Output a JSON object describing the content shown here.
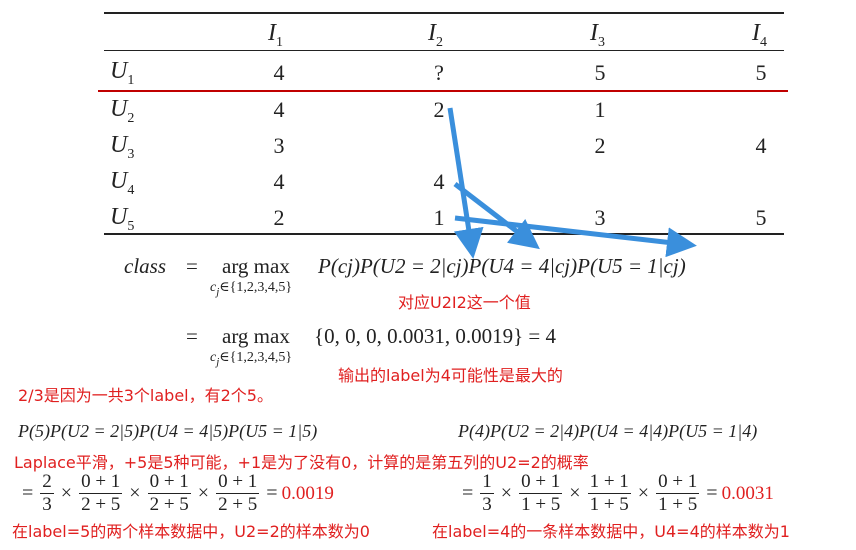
{
  "table": {
    "columns": [
      "I",
      "I",
      "I",
      "I"
    ],
    "column_subs": [
      "1",
      "2",
      "3",
      "4"
    ],
    "rows": [
      {
        "label": "U",
        "sub": "1",
        "cells": [
          "4",
          "?",
          "5",
          "5"
        ]
      },
      {
        "label": "U",
        "sub": "2",
        "cells": [
          "4",
          "2",
          "1",
          ""
        ]
      },
      {
        "label": "U",
        "sub": "3",
        "cells": [
          "3",
          "",
          "2",
          "4"
        ]
      },
      {
        "label": "U",
        "sub": "4",
        "cells": [
          "4",
          "4",
          "",
          ""
        ]
      },
      {
        "label": "U",
        "sub": "5",
        "cells": [
          "2",
          "1",
          "3",
          "5"
        ]
      }
    ]
  },
  "formula1": {
    "lhs": "class",
    "eq": "=",
    "argmax": "arg max",
    "sub": "c",
    "sub_j": "j",
    "sub_set": "∈{1,2,3,4,5}",
    "rhs": "P(cj)P(U2 = 2|cj)P(U4 = 4|cj)P(U5 = 1|cj)"
  },
  "formula2": {
    "eq": "=",
    "argmax": "arg max",
    "set": "{0, 0, 0, 0.0031, 0.0019} = 4"
  },
  "notes": {
    "n1": "对应U2I2这一个值",
    "n2": "输出的label为4可能性是最大的",
    "n3": "2/3是因为一共3个label，有2个5。",
    "n4": "Laplace平滑，+5是5种可能，+1是为了没有0，计算的是第五列的U2=2的概率",
    "n5": "在label=5的两个样本数据中，U2=2的样本数为0",
    "n6": "在label=4的一条样本数据中，U4=4的样本数为1"
  },
  "prob_left": {
    "header": "P(5)P(U2 = 2|5)P(U4 = 4|5)P(U5 = 1|5)",
    "eq": "=",
    "f1n": "2",
    "f1d": "3",
    "f2n": "0 + 1",
    "f2d": "2 + 5",
    "f3n": "0 + 1",
    "f3d": "2 + 5",
    "f4n": "0 + 1",
    "f4d": "2 + 5",
    "times": "×",
    "result": "0.0019"
  },
  "prob_right": {
    "header": "P(4)P(U2 = 2|4)P(U4 = 4|4)P(U5 = 1|4)",
    "eq": "=",
    "f1n": "1",
    "f1d": "3",
    "f2n": "0 + 1",
    "f2d": "1 + 5",
    "f3n": "1 + 1",
    "f3d": "1 + 5",
    "f4n": "0 + 1",
    "f4d": "1 + 5",
    "times": "×",
    "result": "0.0031"
  },
  "colors": {
    "accent_red": "#e02020",
    "arrow_blue": "#3a8fdc",
    "divider_red": "#c00000"
  }
}
